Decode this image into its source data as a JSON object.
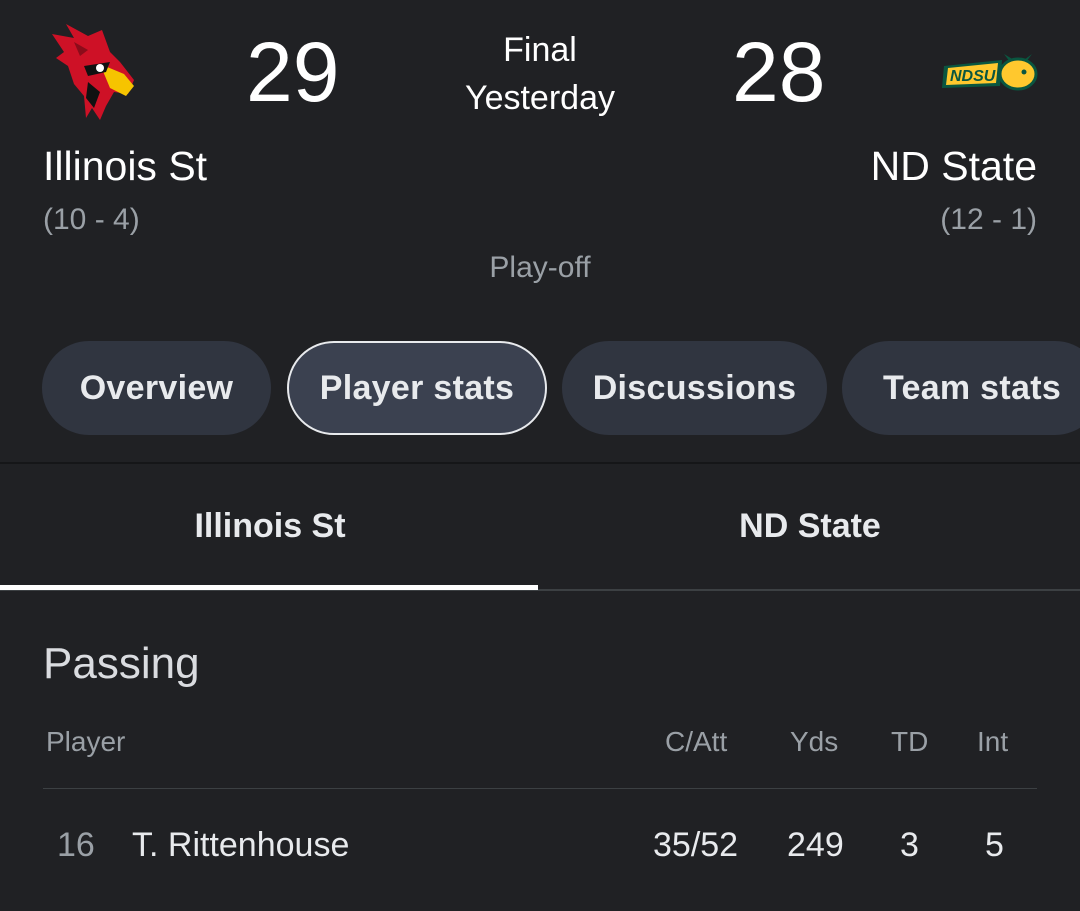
{
  "scoreboard": {
    "home": {
      "name": "Illinois St",
      "record": "(10 - 4)",
      "score": "29",
      "logo_icon": "redbird-logo-icon",
      "colors": {
        "primary": "#ce1126",
        "beak": "#f6c400"
      }
    },
    "away": {
      "name": "ND State",
      "record": "(12 - 1)",
      "score": "28",
      "logo_icon": "ndsu-bison-logo-icon",
      "colors": {
        "primary": "#0a5640",
        "accent": "#ffc82e"
      }
    },
    "status_line1": "Final",
    "status_line2": "Yesterday",
    "game_type": "Play-off"
  },
  "chips": [
    {
      "label": "Overview",
      "active": false
    },
    {
      "label": "Player stats",
      "active": true
    },
    {
      "label": "Discussions",
      "active": false
    },
    {
      "label": "Team stats",
      "active": false
    }
  ],
  "team_tabs": [
    {
      "label": "Illinois St",
      "selected": true
    },
    {
      "label": "ND State",
      "selected": false
    }
  ],
  "passing": {
    "title": "Passing",
    "columns": [
      "Player",
      "C/Att",
      "Yds",
      "TD",
      "Int"
    ],
    "rows": [
      {
        "number": "16",
        "player": "T. Rittenhouse",
        "c_att": "35/52",
        "yds": "249",
        "td": "3",
        "int": "5"
      }
    ]
  },
  "colors": {
    "background": "#202124",
    "chip": "#303540",
    "chip_active_border": "#e8eaed"
  }
}
